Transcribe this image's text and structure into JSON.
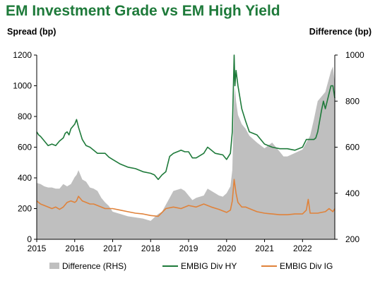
{
  "chart_data": {
    "type": "line",
    "title": "EM Investment Grade vs EM High Yield",
    "ylabel": "Spread (bp)",
    "ylabel_right": "Difference (bp)",
    "x_ticks": [
      "2015",
      "2016",
      "2017",
      "2018",
      "2019",
      "2020",
      "2021",
      "2022"
    ],
    "y_left_ticks": [
      "0",
      "200",
      "400",
      "600",
      "800",
      "1000",
      "1200"
    ],
    "y_right_ticks": [
      "200",
      "400",
      "600",
      "800",
      "1000"
    ],
    "ylim": [
      0,
      1200
    ],
    "ylim_right": [
      200,
      1000
    ],
    "xlim": [
      2015.0,
      2022.85
    ],
    "grid": false,
    "legend_position": "bottom",
    "colors": {
      "title": "#1e7a3a",
      "hy": "#1e7a3a",
      "ig": "#e0823a",
      "diff": "#bfbfbf"
    },
    "series": [
      {
        "name": "Difference (RHS)",
        "type": "area",
        "axis": "right",
        "x": [
          2015.0,
          2015.1,
          2015.2,
          2015.3,
          2015.4,
          2015.5,
          2015.6,
          2015.7,
          2015.8,
          2015.9,
          2016.0,
          2016.05,
          2016.1,
          2016.2,
          2016.3,
          2016.4,
          2016.5,
          2016.6,
          2016.7,
          2016.8,
          2016.9,
          2017.0,
          2017.2,
          2017.4,
          2017.6,
          2017.8,
          2018.0,
          2018.1,
          2018.2,
          2018.3,
          2018.4,
          2018.5,
          2018.6,
          2018.8,
          2018.9,
          2019.0,
          2019.1,
          2019.2,
          2019.4,
          2019.5,
          2019.6,
          2019.7,
          2019.8,
          2019.9,
          2020.0,
          2020.1,
          2020.15,
          2020.2,
          2020.22,
          2020.25,
          2020.3,
          2020.4,
          2020.5,
          2020.6,
          2020.8,
          2021.0,
          2021.2,
          2021.4,
          2021.5,
          2021.6,
          2021.8,
          2022.0,
          2022.1,
          2022.2,
          2022.3,
          2022.35,
          2022.4,
          2022.5,
          2022.6,
          2022.7,
          2022.75,
          2022.8,
          2022.85
        ],
        "values": [
          445,
          440,
          430,
          425,
          425,
          420,
          420,
          440,
          430,
          440,
          470,
          480,
          500,
          460,
          450,
          425,
          420,
          410,
          380,
          360,
          345,
          320,
          310,
          300,
          295,
          290,
          280,
          295,
          310,
          320,
          350,
          380,
          410,
          420,
          410,
          390,
          370,
          380,
          390,
          420,
          410,
          400,
          390,
          385,
          400,
          430,
          500,
          820,
          860,
          800,
          740,
          700,
          680,
          650,
          620,
          595,
          620,
          580,
          560,
          560,
          575,
          590,
          620,
          650,
          720,
          760,
          800,
          820,
          840,
          900,
          930,
          950,
          880
        ]
      },
      {
        "name": "EMBIG Div HY",
        "type": "line",
        "axis": "left",
        "x": [
          2015.0,
          2015.05,
          2015.1,
          2015.2,
          2015.3,
          2015.4,
          2015.5,
          2015.6,
          2015.7,
          2015.75,
          2015.8,
          2015.85,
          2015.9,
          2016.0,
          2016.05,
          2016.1,
          2016.2,
          2016.3,
          2016.4,
          2016.5,
          2016.6,
          2016.7,
          2016.8,
          2016.9,
          2017.0,
          2017.2,
          2017.4,
          2017.6,
          2017.8,
          2018.0,
          2018.1,
          2018.2,
          2018.3,
          2018.4,
          2018.5,
          2018.6,
          2018.8,
          2018.9,
          2019.0,
          2019.1,
          2019.2,
          2019.4,
          2019.5,
          2019.6,
          2019.7,
          2019.8,
          2019.9,
          2020.0,
          2020.1,
          2020.15,
          2020.2,
          2020.22,
          2020.25,
          2020.3,
          2020.4,
          2020.5,
          2020.6,
          2020.8,
          2021.0,
          2021.2,
          2021.4,
          2021.5,
          2021.6,
          2021.8,
          2022.0,
          2022.1,
          2022.2,
          2022.3,
          2022.35,
          2022.4,
          2022.5,
          2022.55,
          2022.6,
          2022.7,
          2022.75,
          2022.8,
          2022.85
        ],
        "values": [
          700,
          680,
          670,
          640,
          610,
          620,
          610,
          640,
          660,
          690,
          700,
          680,
          720,
          750,
          780,
          730,
          650,
          610,
          600,
          580,
          560,
          560,
          560,
          535,
          520,
          490,
          470,
          460,
          440,
          430,
          420,
          390,
          420,
          440,
          540,
          560,
          580,
          570,
          570,
          530,
          530,
          560,
          600,
          580,
          560,
          555,
          550,
          520,
          560,
          700,
          1200,
          1000,
          1100,
          1000,
          850,
          770,
          700,
          680,
          620,
          600,
          590,
          590,
          590,
          580,
          600,
          650,
          650,
          650,
          660,
          700,
          840,
          900,
          850,
          950,
          1000,
          1000,
          920
        ]
      },
      {
        "name": "EMBIG Div IG",
        "type": "line",
        "axis": "left",
        "x": [
          2015.0,
          2015.1,
          2015.2,
          2015.3,
          2015.4,
          2015.5,
          2015.6,
          2015.7,
          2015.8,
          2015.9,
          2016.0,
          2016.05,
          2016.1,
          2016.2,
          2016.3,
          2016.4,
          2016.5,
          2016.6,
          2016.8,
          2017.0,
          2017.2,
          2017.4,
          2017.6,
          2017.8,
          2018.0,
          2018.2,
          2018.4,
          2018.6,
          2018.8,
          2019.0,
          2019.2,
          2019.4,
          2019.6,
          2019.8,
          2020.0,
          2020.1,
          2020.15,
          2020.2,
          2020.25,
          2020.3,
          2020.4,
          2020.5,
          2020.6,
          2020.8,
          2021.0,
          2021.2,
          2021.4,
          2021.6,
          2021.8,
          2022.0,
          2022.1,
          2022.15,
          2022.2,
          2022.3,
          2022.4,
          2022.5,
          2022.6,
          2022.7,
          2022.8,
          2022.85
        ],
        "values": [
          250,
          230,
          220,
          210,
          200,
          210,
          195,
          210,
          240,
          250,
          240,
          250,
          280,
          250,
          240,
          230,
          230,
          220,
          200,
          200,
          190,
          180,
          170,
          165,
          155,
          150,
          200,
          210,
          200,
          220,
          210,
          230,
          210,
          195,
          175,
          190,
          250,
          390,
          300,
          240,
          210,
          210,
          200,
          180,
          170,
          165,
          160,
          160,
          165,
          165,
          190,
          260,
          170,
          170,
          170,
          175,
          180,
          200,
          180,
          200
        ]
      }
    ]
  }
}
